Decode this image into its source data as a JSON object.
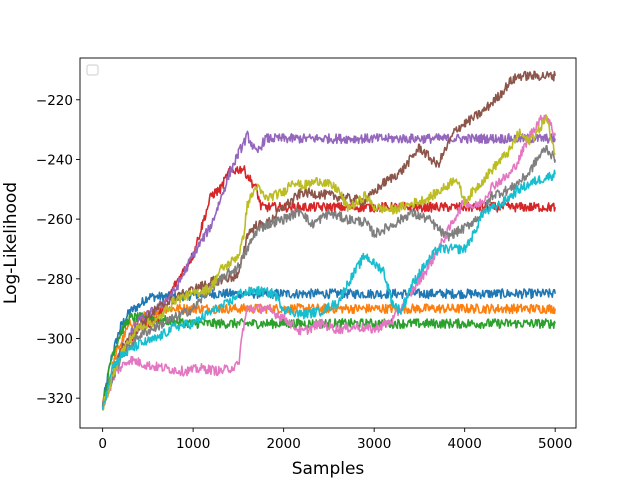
{
  "chart_data": {
    "type": "line",
    "title": "",
    "xlabel": "Samples",
    "ylabel": "Log-Likelihood",
    "xlim": [
      -250,
      5230
    ],
    "ylim": [
      -330,
      -206
    ],
    "xticks": [
      0,
      1000,
      2000,
      3000,
      4000,
      5000
    ],
    "yticks": [
      -320,
      -300,
      -280,
      -260,
      -240,
      -220
    ],
    "ytick_labels": [
      "−320",
      "−300",
      "−280",
      "−260",
      "−240",
      "−220"
    ],
    "grid": false,
    "legend": {
      "placement": "top-left",
      "entries": []
    },
    "series": [
      {
        "color": "#1f77b4",
        "points": [
          [
            0,
            -322
          ],
          [
            100,
            -306
          ],
          [
            200,
            -296
          ],
          [
            300,
            -291
          ],
          [
            400,
            -289
          ],
          [
            500,
            -286
          ],
          [
            800,
            -286
          ],
          [
            1200,
            -285
          ],
          [
            2000,
            -285
          ],
          [
            3000,
            -285
          ],
          [
            4000,
            -285
          ],
          [
            5000,
            -285
          ]
        ]
      },
      {
        "color": "#ff7f0e",
        "points": [
          [
            0,
            -322
          ],
          [
            150,
            -305
          ],
          [
            300,
            -295
          ],
          [
            500,
            -292
          ],
          [
            700,
            -290
          ],
          [
            1000,
            -290
          ],
          [
            2000,
            -290
          ],
          [
            3000,
            -290
          ],
          [
            4000,
            -290
          ],
          [
            5000,
            -290
          ]
        ]
      },
      {
        "color": "#2ca02c",
        "points": [
          [
            0,
            -323
          ],
          [
            100,
            -306
          ],
          [
            200,
            -298
          ],
          [
            300,
            -293
          ],
          [
            500,
            -293
          ],
          [
            700,
            -294
          ],
          [
            1000,
            -295
          ],
          [
            2000,
            -295
          ],
          [
            3000,
            -295
          ],
          [
            4000,
            -295
          ],
          [
            5000,
            -295
          ]
        ]
      },
      {
        "color": "#d62728",
        "points": [
          [
            0,
            -323
          ],
          [
            200,
            -305
          ],
          [
            400,
            -296
          ],
          [
            600,
            -294
          ],
          [
            800,
            -282
          ],
          [
            1000,
            -272
          ],
          [
            1100,
            -262
          ],
          [
            1200,
            -252
          ],
          [
            1300,
            -250
          ],
          [
            1400,
            -244
          ],
          [
            1550,
            -243
          ],
          [
            1700,
            -250
          ],
          [
            1750,
            -256
          ],
          [
            2000,
            -256
          ],
          [
            2500,
            -256
          ],
          [
            3000,
            -256
          ],
          [
            4000,
            -256
          ],
          [
            5000,
            -256
          ]
        ]
      },
      {
        "color": "#9467bd",
        "points": [
          [
            0,
            -323
          ],
          [
            200,
            -304
          ],
          [
            400,
            -294
          ],
          [
            600,
            -290
          ],
          [
            800,
            -284
          ],
          [
            1000,
            -272
          ],
          [
            1200,
            -262
          ],
          [
            1400,
            -245
          ],
          [
            1500,
            -238
          ],
          [
            1600,
            -232
          ],
          [
            1700,
            -238
          ],
          [
            1800,
            -233
          ],
          [
            2500,
            -233
          ],
          [
            3000,
            -233
          ],
          [
            4000,
            -233
          ],
          [
            5000,
            -233
          ]
        ]
      },
      {
        "color": "#8c564b",
        "points": [
          [
            0,
            -323
          ],
          [
            200,
            -304
          ],
          [
            400,
            -296
          ],
          [
            600,
            -290
          ],
          [
            900,
            -285
          ],
          [
            1200,
            -281
          ],
          [
            1500,
            -279
          ],
          [
            1600,
            -265
          ],
          [
            1700,
            -262
          ],
          [
            1800,
            -262
          ],
          [
            2000,
            -256
          ],
          [
            2200,
            -251
          ],
          [
            2500,
            -252
          ],
          [
            2700,
            -253
          ],
          [
            2900,
            -254
          ],
          [
            3100,
            -248
          ],
          [
            3300,
            -244
          ],
          [
            3500,
            -236
          ],
          [
            3700,
            -242
          ],
          [
            3900,
            -230
          ],
          [
            4000,
            -228
          ],
          [
            4200,
            -224
          ],
          [
            4400,
            -218
          ],
          [
            4500,
            -214
          ],
          [
            4600,
            -212
          ],
          [
            5000,
            -212
          ]
        ]
      },
      {
        "color": "#e377c2",
        "points": [
          [
            0,
            -323
          ],
          [
            150,
            -311
          ],
          [
            300,
            -307
          ],
          [
            500,
            -309
          ],
          [
            700,
            -310
          ],
          [
            900,
            -311
          ],
          [
            1100,
            -310
          ],
          [
            1300,
            -311
          ],
          [
            1500,
            -309
          ],
          [
            1550,
            -297
          ],
          [
            1600,
            -290
          ],
          [
            1800,
            -290
          ],
          [
            2000,
            -293
          ],
          [
            2200,
            -298
          ],
          [
            2400,
            -295
          ],
          [
            2600,
            -297
          ],
          [
            2800,
            -296
          ],
          [
            3000,
            -297
          ],
          [
            3200,
            -294
          ],
          [
            3400,
            -285
          ],
          [
            3600,
            -276
          ],
          [
            3800,
            -265
          ],
          [
            3900,
            -259
          ],
          [
            4000,
            -254
          ],
          [
            4100,
            -256
          ],
          [
            4200,
            -254
          ],
          [
            4300,
            -249
          ],
          [
            4500,
            -245
          ],
          [
            4600,
            -240
          ],
          [
            4700,
            -233
          ],
          [
            4800,
            -228
          ],
          [
            4900,
            -225
          ],
          [
            5000,
            -232
          ]
        ]
      },
      {
        "color": "#7f7f7f",
        "points": [
          [
            0,
            -323
          ],
          [
            200,
            -306
          ],
          [
            400,
            -299
          ],
          [
            600,
            -296
          ],
          [
            800,
            -293
          ],
          [
            1000,
            -290
          ],
          [
            1200,
            -283
          ],
          [
            1400,
            -278
          ],
          [
            1500,
            -276
          ],
          [
            1600,
            -270
          ],
          [
            1700,
            -264
          ],
          [
            1800,
            -262
          ],
          [
            2000,
            -260
          ],
          [
            2200,
            -257
          ],
          [
            2300,
            -262
          ],
          [
            2500,
            -258
          ],
          [
            2700,
            -260
          ],
          [
            2900,
            -261
          ],
          [
            3000,
            -265
          ],
          [
            3200,
            -262
          ],
          [
            3400,
            -258
          ],
          [
            3600,
            -260
          ],
          [
            3800,
            -266
          ],
          [
            4000,
            -263
          ],
          [
            4200,
            -258
          ],
          [
            4300,
            -252
          ],
          [
            4500,
            -250
          ],
          [
            4700,
            -245
          ],
          [
            4800,
            -240
          ],
          [
            4900,
            -236
          ],
          [
            5000,
            -240
          ]
        ]
      },
      {
        "color": "#bcbd22",
        "points": [
          [
            0,
            -323
          ],
          [
            200,
            -305
          ],
          [
            400,
            -296
          ],
          [
            600,
            -294
          ],
          [
            800,
            -287
          ],
          [
            1000,
            -285
          ],
          [
            1200,
            -283
          ],
          [
            1300,
            -277
          ],
          [
            1400,
            -275
          ],
          [
            1500,
            -272
          ],
          [
            1550,
            -267
          ],
          [
            1600,
            -255
          ],
          [
            1700,
            -249
          ],
          [
            1800,
            -253
          ],
          [
            2000,
            -251
          ],
          [
            2100,
            -247
          ],
          [
            2200,
            -249
          ],
          [
            2400,
            -247
          ],
          [
            2600,
            -250
          ],
          [
            2700,
            -256
          ],
          [
            2800,
            -255
          ],
          [
            2900,
            -252
          ],
          [
            3000,
            -256
          ],
          [
            3200,
            -257
          ],
          [
            3400,
            -255
          ],
          [
            3600,
            -253
          ],
          [
            3800,
            -249
          ],
          [
            3900,
            -246
          ],
          [
            4000,
            -254
          ],
          [
            4200,
            -247
          ],
          [
            4400,
            -240
          ],
          [
            4500,
            -237
          ],
          [
            4600,
            -231
          ],
          [
            4700,
            -234
          ],
          [
            4800,
            -231
          ],
          [
            4900,
            -226
          ],
          [
            5000,
            -238
          ]
        ]
      },
      {
        "color": "#17becf",
        "points": [
          [
            0,
            -324
          ],
          [
            100,
            -310
          ],
          [
            200,
            -306
          ],
          [
            400,
            -302
          ],
          [
            600,
            -300
          ],
          [
            800,
            -296
          ],
          [
            1000,
            -295
          ],
          [
            1200,
            -291
          ],
          [
            1400,
            -288
          ],
          [
            1500,
            -285
          ],
          [
            1700,
            -284
          ],
          [
            1900,
            -285
          ],
          [
            2000,
            -290
          ],
          [
            2200,
            -292
          ],
          [
            2400,
            -291
          ],
          [
            2600,
            -288
          ],
          [
            2700,
            -282
          ],
          [
            2800,
            -277
          ],
          [
            2900,
            -272
          ],
          [
            3000,
            -275
          ],
          [
            3100,
            -277
          ],
          [
            3200,
            -288
          ],
          [
            3300,
            -291
          ],
          [
            3400,
            -283
          ],
          [
            3500,
            -278
          ],
          [
            3700,
            -270
          ],
          [
            3900,
            -270
          ],
          [
            4000,
            -270
          ],
          [
            4100,
            -265
          ],
          [
            4200,
            -258
          ],
          [
            4400,
            -255
          ],
          [
            4600,
            -250
          ],
          [
            4800,
            -247
          ],
          [
            5000,
            -245
          ]
        ]
      }
    ]
  }
}
